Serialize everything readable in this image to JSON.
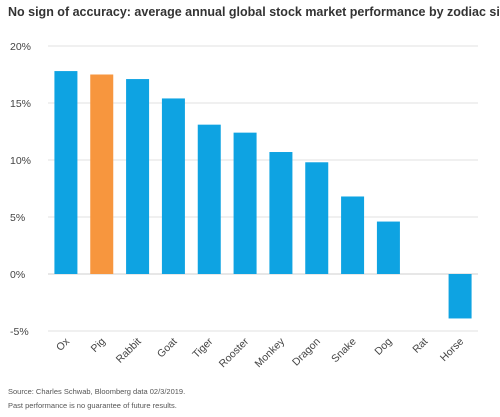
{
  "chart_data": {
    "type": "bar",
    "title": "No sign of accuracy: average annual global stock market performance by zodiac sign",
    "xlabel": "",
    "ylabel": "",
    "categories": [
      "Ox",
      "Pig",
      "Rabbit",
      "Goat",
      "Tiger",
      "Rooster",
      "Monkey",
      "Dragon",
      "Snake",
      "Dog",
      "Rat",
      "Horse"
    ],
    "values": [
      17.8,
      17.5,
      17.1,
      15.4,
      13.1,
      12.4,
      10.7,
      9.8,
      6.8,
      4.6,
      0.0,
      -3.9
    ],
    "ylim": [
      -5,
      20
    ],
    "yticks": [
      -5,
      0,
      5,
      10,
      15,
      20
    ],
    "ytick_labels": [
      "-5%",
      "0%",
      "5%",
      "10%",
      "15%",
      "20%"
    ],
    "grid": "horizontal",
    "highlight_category": "Pig",
    "colors": {
      "default": "#0ea3e2",
      "highlight": "#f7963e",
      "grid": "#e2e2e2",
      "zero_line": "#cfcfcf"
    }
  },
  "footer": {
    "source": "Source: Charles Schwab, Bloomberg data 02/3/2019.",
    "disclaimer": "Past performance is no guarantee of future results."
  }
}
